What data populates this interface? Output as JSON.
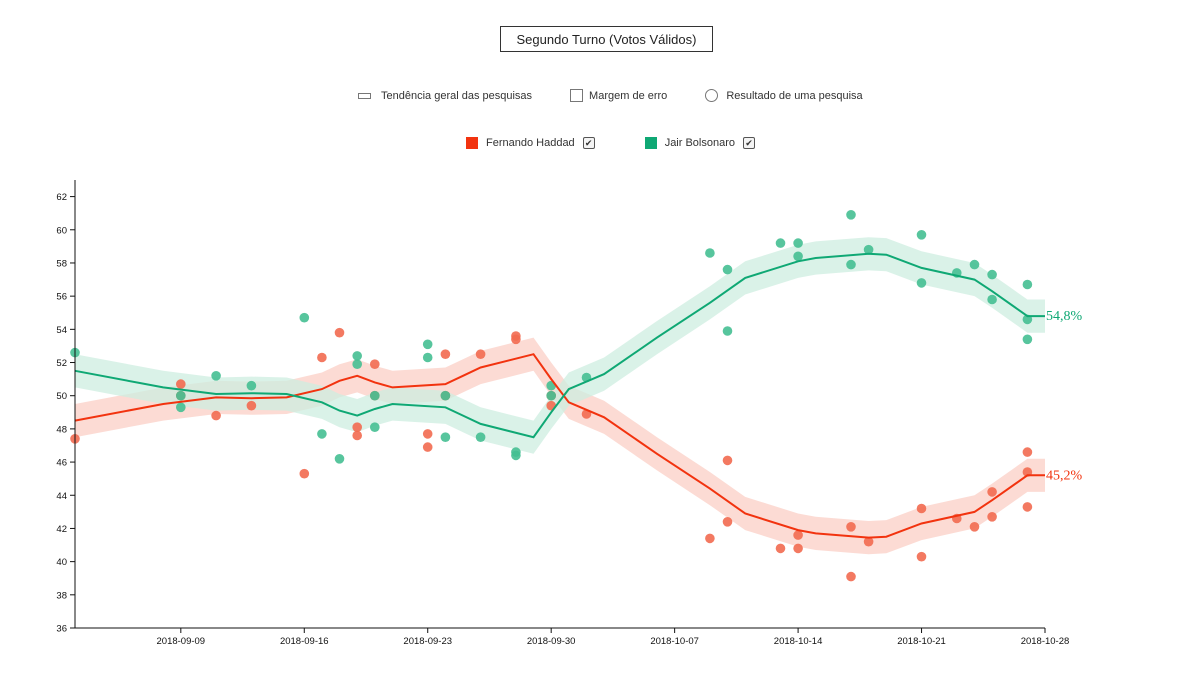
{
  "title": "Segundo Turno (Votos Válidos)",
  "legend": {
    "trend": "Tendência geral das pesquisas",
    "margin": "Margem de erro",
    "poll": "Resultado de uma pesquisa"
  },
  "series_toggle": [
    {
      "label": "Fernando Haddad",
      "color": "#f2330f",
      "checked_mark": "✔"
    },
    {
      "label": "Jair Bolsonaro",
      "color": "#0fa874",
      "checked_mark": "✔"
    }
  ],
  "chart_data": {
    "type": "line",
    "x_type": "date",
    "xlim": [
      "2018-09-03",
      "2018-10-28"
    ],
    "ylim": [
      36,
      63
    ],
    "yticks": [
      36,
      38,
      40,
      42,
      44,
      46,
      48,
      50,
      52,
      54,
      56,
      58,
      60,
      62
    ],
    "xticks": [
      "2018-09-09",
      "2018-09-16",
      "2018-09-23",
      "2018-09-30",
      "2018-10-07",
      "2018-10-14",
      "2018-10-21",
      "2018-10-28"
    ],
    "series": [
      {
        "name": "Fernando Haddad",
        "color": "#f2330f",
        "point_color": "#f26a50",
        "band_color": "#fbcfc6",
        "end_label": "45,2%",
        "trend": [
          {
            "x": "2018-09-03",
            "y": 48.5
          },
          {
            "x": "2018-09-08",
            "y": 49.5
          },
          {
            "x": "2018-09-11",
            "y": 49.9
          },
          {
            "x": "2018-09-13",
            "y": 49.85
          },
          {
            "x": "2018-09-15",
            "y": 49.9
          },
          {
            "x": "2018-09-17",
            "y": 50.4
          },
          {
            "x": "2018-09-18",
            "y": 50.9
          },
          {
            "x": "2018-09-19",
            "y": 51.2
          },
          {
            "x": "2018-09-20",
            "y": 50.8
          },
          {
            "x": "2018-09-21",
            "y": 50.5
          },
          {
            "x": "2018-09-24",
            "y": 50.7
          },
          {
            "x": "2018-09-25",
            "y": 51.2
          },
          {
            "x": "2018-09-26",
            "y": 51.7
          },
          {
            "x": "2018-09-29",
            "y": 52.5
          },
          {
            "x": "2018-09-30",
            "y": 51.0
          },
          {
            "x": "2018-10-01",
            "y": 49.6
          },
          {
            "x": "2018-10-03",
            "y": 48.7
          },
          {
            "x": "2018-10-06",
            "y": 46.5
          },
          {
            "x": "2018-10-09",
            "y": 44.4
          },
          {
            "x": "2018-10-11",
            "y": 42.9
          },
          {
            "x": "2018-10-14",
            "y": 41.9
          },
          {
            "x": "2018-10-15",
            "y": 41.7
          },
          {
            "x": "2018-10-18",
            "y": 41.45
          },
          {
            "x": "2018-10-19",
            "y": 41.5
          },
          {
            "x": "2018-10-21",
            "y": 42.3
          },
          {
            "x": "2018-10-24",
            "y": 43.0
          },
          {
            "x": "2018-10-25",
            "y": 43.7
          },
          {
            "x": "2018-10-27",
            "y": 45.2
          },
          {
            "x": "2018-10-28",
            "y": 45.2
          }
        ],
        "polls": [
          {
            "x": "2018-09-03",
            "y": 47.4
          },
          {
            "x": "2018-09-09",
            "y": 50.7
          },
          {
            "x": "2018-09-09",
            "y": 50.0
          },
          {
            "x": "2018-09-11",
            "y": 48.8
          },
          {
            "x": "2018-09-13",
            "y": 49.4
          },
          {
            "x": "2018-09-16",
            "y": 45.3
          },
          {
            "x": "2018-09-17",
            "y": 52.3
          },
          {
            "x": "2018-09-18",
            "y": 53.8
          },
          {
            "x": "2018-09-19",
            "y": 48.1
          },
          {
            "x": "2018-09-19",
            "y": 47.6
          },
          {
            "x": "2018-09-20",
            "y": 51.9
          },
          {
            "x": "2018-09-20",
            "y": 50.0
          },
          {
            "x": "2018-09-23",
            "y": 47.7
          },
          {
            "x": "2018-09-23",
            "y": 46.9
          },
          {
            "x": "2018-09-24",
            "y": 52.5
          },
          {
            "x": "2018-09-24",
            "y": 50.0
          },
          {
            "x": "2018-09-26",
            "y": 52.5
          },
          {
            "x": "2018-09-28",
            "y": 53.6
          },
          {
            "x": "2018-09-28",
            "y": 53.4
          },
          {
            "x": "2018-09-30",
            "y": 49.4
          },
          {
            "x": "2018-09-30",
            "y": 50.0
          },
          {
            "x": "2018-10-02",
            "y": 48.9
          },
          {
            "x": "2018-10-09",
            "y": 41.4
          },
          {
            "x": "2018-10-10",
            "y": 46.1
          },
          {
            "x": "2018-10-10",
            "y": 42.4
          },
          {
            "x": "2018-10-13",
            "y": 40.8
          },
          {
            "x": "2018-10-14",
            "y": 41.6
          },
          {
            "x": "2018-10-14",
            "y": 40.8
          },
          {
            "x": "2018-10-17",
            "y": 39.1
          },
          {
            "x": "2018-10-17",
            "y": 42.1
          },
          {
            "x": "2018-10-18",
            "y": 41.2
          },
          {
            "x": "2018-10-21",
            "y": 43.2
          },
          {
            "x": "2018-10-21",
            "y": 40.3
          },
          {
            "x": "2018-10-23",
            "y": 42.6
          },
          {
            "x": "2018-10-24",
            "y": 42.1
          },
          {
            "x": "2018-10-25",
            "y": 44.2
          },
          {
            "x": "2018-10-25",
            "y": 42.7
          },
          {
            "x": "2018-10-27",
            "y": 46.6
          },
          {
            "x": "2018-10-27",
            "y": 45.4
          },
          {
            "x": "2018-10-27",
            "y": 43.3
          }
        ]
      },
      {
        "name": "Jair Bolsonaro",
        "color": "#0fa874",
        "point_color": "#45bf92",
        "band_color": "#cdeee0",
        "end_label": "54,8%",
        "trend": [
          {
            "x": "2018-09-03",
            "y": 51.5
          },
          {
            "x": "2018-09-08",
            "y": 50.5
          },
          {
            "x": "2018-09-11",
            "y": 50.1
          },
          {
            "x": "2018-09-13",
            "y": 50.15
          },
          {
            "x": "2018-09-15",
            "y": 50.1
          },
          {
            "x": "2018-09-17",
            "y": 49.6
          },
          {
            "x": "2018-09-18",
            "y": 49.1
          },
          {
            "x": "2018-09-19",
            "y": 48.8
          },
          {
            "x": "2018-09-20",
            "y": 49.2
          },
          {
            "x": "2018-09-21",
            "y": 49.5
          },
          {
            "x": "2018-09-24",
            "y": 49.3
          },
          {
            "x": "2018-09-25",
            "y": 48.8
          },
          {
            "x": "2018-09-26",
            "y": 48.3
          },
          {
            "x": "2018-09-29",
            "y": 47.5
          },
          {
            "x": "2018-09-30",
            "y": 49.0
          },
          {
            "x": "2018-10-01",
            "y": 50.4
          },
          {
            "x": "2018-10-03",
            "y": 51.3
          },
          {
            "x": "2018-10-06",
            "y": 53.5
          },
          {
            "x": "2018-10-09",
            "y": 55.6
          },
          {
            "x": "2018-10-11",
            "y": 57.1
          },
          {
            "x": "2018-10-14",
            "y": 58.1
          },
          {
            "x": "2018-10-15",
            "y": 58.3
          },
          {
            "x": "2018-10-18",
            "y": 58.55
          },
          {
            "x": "2018-10-19",
            "y": 58.5
          },
          {
            "x": "2018-10-21",
            "y": 57.7
          },
          {
            "x": "2018-10-24",
            "y": 57.0
          },
          {
            "x": "2018-10-25",
            "y": 56.3
          },
          {
            "x": "2018-10-27",
            "y": 54.8
          },
          {
            "x": "2018-10-28",
            "y": 54.8
          }
        ],
        "polls": [
          {
            "x": "2018-09-03",
            "y": 52.6
          },
          {
            "x": "2018-09-09",
            "y": 50.0
          },
          {
            "x": "2018-09-09",
            "y": 49.3
          },
          {
            "x": "2018-09-11",
            "y": 51.2
          },
          {
            "x": "2018-09-13",
            "y": 50.6
          },
          {
            "x": "2018-09-16",
            "y": 54.7
          },
          {
            "x": "2018-09-17",
            "y": 47.7
          },
          {
            "x": "2018-09-18",
            "y": 46.2
          },
          {
            "x": "2018-09-19",
            "y": 51.9
          },
          {
            "x": "2018-09-19",
            "y": 52.4
          },
          {
            "x": "2018-09-20",
            "y": 48.1
          },
          {
            "x": "2018-09-20",
            "y": 50.0
          },
          {
            "x": "2018-09-23",
            "y": 52.3
          },
          {
            "x": "2018-09-23",
            "y": 53.1
          },
          {
            "x": "2018-09-24",
            "y": 47.5
          },
          {
            "x": "2018-09-24",
            "y": 50.0
          },
          {
            "x": "2018-09-26",
            "y": 47.5
          },
          {
            "x": "2018-09-28",
            "y": 46.4
          },
          {
            "x": "2018-09-28",
            "y": 46.6
          },
          {
            "x": "2018-09-30",
            "y": 50.6
          },
          {
            "x": "2018-09-30",
            "y": 50.0
          },
          {
            "x": "2018-10-02",
            "y": 51.1
          },
          {
            "x": "2018-10-09",
            "y": 58.6
          },
          {
            "x": "2018-10-10",
            "y": 53.9
          },
          {
            "x": "2018-10-10",
            "y": 57.6
          },
          {
            "x": "2018-10-13",
            "y": 59.2
          },
          {
            "x": "2018-10-14",
            "y": 58.4
          },
          {
            "x": "2018-10-14",
            "y": 59.2
          },
          {
            "x": "2018-10-17",
            "y": 60.9
          },
          {
            "x": "2018-10-17",
            "y": 57.9
          },
          {
            "x": "2018-10-18",
            "y": 58.8
          },
          {
            "x": "2018-10-21",
            "y": 56.8
          },
          {
            "x": "2018-10-21",
            "y": 59.7
          },
          {
            "x": "2018-10-23",
            "y": 57.4
          },
          {
            "x": "2018-10-24",
            "y": 57.9
          },
          {
            "x": "2018-10-25",
            "y": 55.8
          },
          {
            "x": "2018-10-25",
            "y": 57.3
          },
          {
            "x": "2018-10-27",
            "y": 53.4
          },
          {
            "x": "2018-10-27",
            "y": 54.6
          },
          {
            "x": "2018-10-27",
            "y": 56.7
          }
        ]
      }
    ]
  }
}
